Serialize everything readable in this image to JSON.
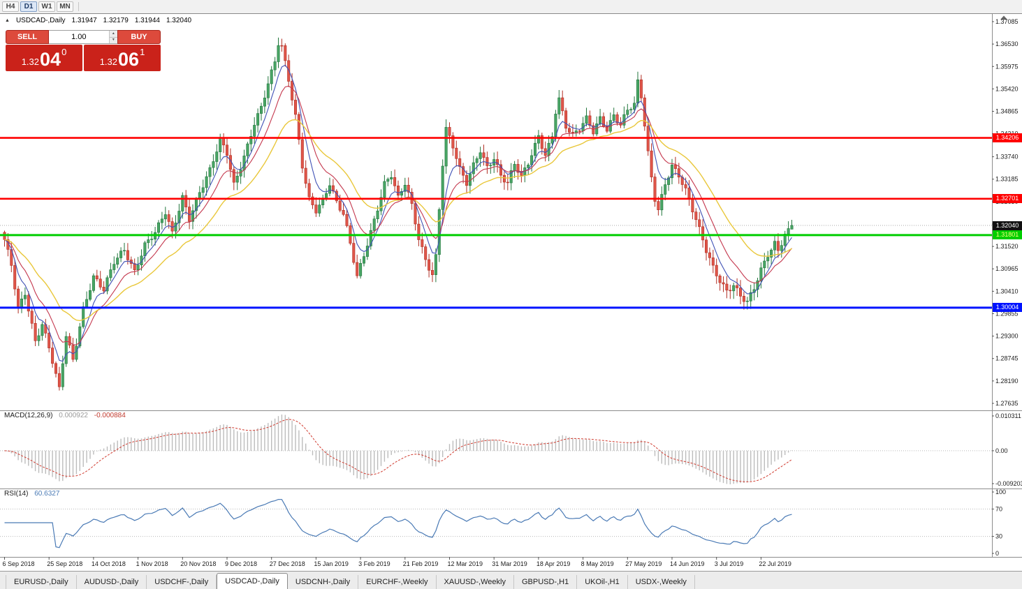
{
  "toolbar": {
    "timeframes": [
      "H4",
      "D1",
      "W1",
      "MN"
    ],
    "active": "D1"
  },
  "icons": {
    "collapse_panel": "▲",
    "volume_up": "▲",
    "volume_down": "▼"
  },
  "chart_header": {
    "symbol": "USDCAD-,Daily",
    "open": "1.31947",
    "high": "1.32179",
    "low": "1.31944",
    "close": "1.32040"
  },
  "trade_panel": {
    "sell_label": "SELL",
    "buy_label": "BUY",
    "volume": "1.00",
    "sell_price": {
      "main": "1.32",
      "pips": "04",
      "pt": "0"
    },
    "buy_price": {
      "main": "1.32",
      "pips": "06",
      "pt": "1"
    }
  },
  "price_axis": {
    "labels": [
      "1.37085",
      "1.36530",
      "1.35975",
      "1.35420",
      "1.34865",
      "1.34310",
      "1.33740",
      "1.33185",
      "1.32630",
      "1.32075",
      "1.31520",
      "1.30965",
      "1.30410",
      "1.29855",
      "1.29300",
      "1.28745",
      "1.28190",
      "1.27635"
    ],
    "badges": [
      {
        "value": "1.34206",
        "bg": "#ff0000",
        "fg": "#ffffff",
        "name": "price-badge-resistance-1"
      },
      {
        "value": "1.32701",
        "bg": "#ff0000",
        "fg": "#ffffff",
        "name": "price-badge-resistance-2"
      },
      {
        "value": "1.32040",
        "bg": "#111111",
        "fg": "#ffffff",
        "name": "current-price-badge"
      },
      {
        "value": "1.31801",
        "bg": "#00ce00",
        "fg": "#ffff80",
        "name": "price-badge-support-green"
      },
      {
        "value": "1.30004",
        "bg": "#0013ff",
        "fg": "#ffffff",
        "name": "price-badge-support-blue"
      }
    ]
  },
  "indicators": {
    "macd": {
      "label": "MACD(12,26,9)",
      "value": "0.000922",
      "signal_value": "-0.000884",
      "axis_top": "0.010311",
      "axis_zero": "0.00",
      "axis_bottom": "-0.0092033"
    },
    "rsi": {
      "label": "RSI(14)",
      "value": "60.6327",
      "axis": [
        "100",
        "70",
        "30",
        "0"
      ],
      "levels": [
        70,
        30
      ]
    }
  },
  "date_axis": {
    "labels": [
      {
        "i": 0,
        "label": "6 Sep 2018"
      },
      {
        "i": 13,
        "label": "25 Sep 2018"
      },
      {
        "i": 26,
        "label": "14 Oct 2018"
      },
      {
        "i": 39,
        "label": "1 Nov 2018"
      },
      {
        "i": 52,
        "label": "20 Nov 2018"
      },
      {
        "i": 65,
        "label": "9 Dec 2018"
      },
      {
        "i": 78,
        "label": "27 Dec 2018"
      },
      {
        "i": 91,
        "label": "15 Jan 2019"
      },
      {
        "i": 104,
        "label": "3 Feb 2019"
      },
      {
        "i": 117,
        "label": "21 Feb 2019"
      },
      {
        "i": 130,
        "label": "12 Mar 2019"
      },
      {
        "i": 143,
        "label": "31 Mar 2019"
      },
      {
        "i": 156,
        "label": "18 Apr 2019"
      },
      {
        "i": 169,
        "label": "8 May 2019"
      },
      {
        "i": 182,
        "label": "27 May 2019"
      },
      {
        "i": 195,
        "label": "14 Jun 2019"
      },
      {
        "i": 208,
        "label": "3 Jul 2019"
      },
      {
        "i": 221,
        "label": "22 Jul 2019"
      }
    ]
  },
  "tabs": {
    "items": [
      "EURUSD-,Daily",
      "AUDUSD-,Daily",
      "USDCHF-,Daily",
      "USDCAD-,Daily",
      "USDCNH-,Daily",
      "EURCHF-,Weekly",
      "XAUUSD-,Weekly",
      "GBPUSD-,H1",
      "UKOil-,H1",
      "USDX-,Weekly"
    ],
    "active_index": 3
  },
  "chart_data": {
    "type": "candlestick",
    "symbol": "USDCAD",
    "timeframe": "Daily",
    "candles_count": 231,
    "price_scale": {
      "top_label_price": 1.37085,
      "bottom_label_price": 1.27635
    },
    "current_price": 1.3204,
    "last_candle": {
      "open": 1.31947,
      "high": 1.32179,
      "low": 1.31944,
      "close": 1.3204
    },
    "close_waypoints": [
      [
        0,
        1.3165
      ],
      [
        2,
        1.3105
      ],
      [
        4,
        1.3
      ],
      [
        6,
        1.304
      ],
      [
        9,
        1.292
      ],
      [
        11,
        1.296
      ],
      [
        13,
        1.29
      ],
      [
        16,
        1.2795
      ],
      [
        18,
        1.293
      ],
      [
        20,
        1.287
      ],
      [
        23,
        1.3
      ],
      [
        26,
        1.308
      ],
      [
        29,
        1.3045
      ],
      [
        32,
        1.311
      ],
      [
        35,
        1.314
      ],
      [
        38,
        1.309
      ],
      [
        41,
        1.316
      ],
      [
        44,
        1.319
      ],
      [
        47,
        1.3235
      ],
      [
        49,
        1.318
      ],
      [
        52,
        1.327
      ],
      [
        54,
        1.322
      ],
      [
        57,
        1.329
      ],
      [
        60,
        1.3345
      ],
      [
        63,
        1.3415
      ],
      [
        65,
        1.338
      ],
      [
        67,
        1.33
      ],
      [
        69,
        1.3345
      ],
      [
        71,
        1.34
      ],
      [
        73,
        1.346
      ],
      [
        75,
        1.35
      ],
      [
        77,
        1.356
      ],
      [
        79,
        1.361
      ],
      [
        80,
        1.3655
      ],
      [
        81,
        1.3645
      ],
      [
        83,
        1.356
      ],
      [
        85,
        1.347
      ],
      [
        87,
        1.335
      ],
      [
        89,
        1.327
      ],
      [
        91,
        1.3245
      ],
      [
        93,
        1.327
      ],
      [
        95,
        1.331
      ],
      [
        97,
        1.326
      ],
      [
        99,
        1.323
      ],
      [
        101,
        1.3155
      ],
      [
        103,
        1.3075
      ],
      [
        105,
        1.313
      ],
      [
        107,
        1.319
      ],
      [
        109,
        1.325
      ],
      [
        111,
        1.331
      ],
      [
        113,
        1.333
      ],
      [
        115,
        1.327
      ],
      [
        117,
        1.3305
      ],
      [
        119,
        1.325
      ],
      [
        121,
        1.317
      ],
      [
        123,
        1.312
      ],
      [
        125,
        1.3085
      ],
      [
        126,
        1.313
      ],
      [
        127,
        1.325
      ],
      [
        128,
        1.336
      ],
      [
        129,
        1.3445
      ],
      [
        131,
        1.34
      ],
      [
        133,
        1.334
      ],
      [
        135,
        1.3305
      ],
      [
        137,
        1.335
      ],
      [
        139,
        1.339
      ],
      [
        141,
        1.335
      ],
      [
        143,
        1.3375
      ],
      [
        145,
        1.333
      ],
      [
        147,
        1.331
      ],
      [
        149,
        1.3355
      ],
      [
        151,
        1.332
      ],
      [
        153,
        1.3355
      ],
      [
        155,
        1.34
      ],
      [
        156,
        1.3425
      ],
      [
        158,
        1.338
      ],
      [
        160,
        1.343
      ],
      [
        161,
        1.349
      ],
      [
        162,
        1.352
      ],
      [
        164,
        1.345
      ],
      [
        166,
        1.3425
      ],
      [
        168,
        1.344
      ],
      [
        170,
        1.3465
      ],
      [
        172,
        1.3435
      ],
      [
        174,
        1.347
      ],
      [
        176,
        1.3445
      ],
      [
        178,
        1.348
      ],
      [
        180,
        1.3455
      ],
      [
        182,
        1.349
      ],
      [
        184,
        1.35
      ],
      [
        185,
        1.3555
      ],
      [
        186,
        1.352
      ],
      [
        187,
        1.345
      ],
      [
        188,
        1.338
      ],
      [
        189,
        1.332
      ],
      [
        190,
        1.327
      ],
      [
        191,
        1.3245
      ],
      [
        193,
        1.331
      ],
      [
        195,
        1.3355
      ],
      [
        197,
        1.333
      ],
      [
        199,
        1.329
      ],
      [
        201,
        1.324
      ],
      [
        203,
        1.319
      ],
      [
        205,
        1.314
      ],
      [
        207,
        1.31
      ],
      [
        209,
        1.307
      ],
      [
        211,
        1.3045
      ],
      [
        213,
        1.306
      ],
      [
        215,
        1.303
      ],
      [
        217,
        1.3012
      ],
      [
        219,
        1.3045
      ],
      [
        221,
        1.309
      ],
      [
        223,
        1.313
      ],
      [
        225,
        1.316
      ],
      [
        226,
        1.3145
      ],
      [
        228,
        1.3185
      ],
      [
        230,
        1.3204
      ]
    ],
    "hlines": [
      {
        "name": "hline-resistance-1",
        "price": 1.34206,
        "color": "#ff0000",
        "width": 2.6
      },
      {
        "name": "hline-resistance-2",
        "price": 1.32701,
        "color": "#ff0000",
        "width": 2.6
      },
      {
        "name": "hline-support-green",
        "price": 1.31801,
        "color": "#00ce00",
        "width": 3
      },
      {
        "name": "hline-support-blue",
        "price": 1.30004,
        "color": "#0013ff",
        "width": 3
      }
    ],
    "moving_averages": [
      {
        "period": 6,
        "color": "#3f51b5",
        "width": 1.1
      },
      {
        "period": 12,
        "color": "#c4374d",
        "width": 1.1
      },
      {
        "period": 26,
        "color": "#e9c73a",
        "width": 1.4
      }
    ],
    "macd_params": {
      "fast": 12,
      "slow": 26,
      "signal": 9
    },
    "rsi_period": 14,
    "colors": {
      "bull": "#49a565",
      "bull_border": "#21763c",
      "bear": "#e0564a",
      "bear_border": "#b02e23",
      "macd_hist": "#bcbcbc",
      "macd_signal": "#d03a2e",
      "rsi_line": "#4a7ab5",
      "level_dots": "#b8b8b8",
      "current_price_line": "#aaaaaa",
      "axis_line": "#8c8c8c"
    }
  }
}
